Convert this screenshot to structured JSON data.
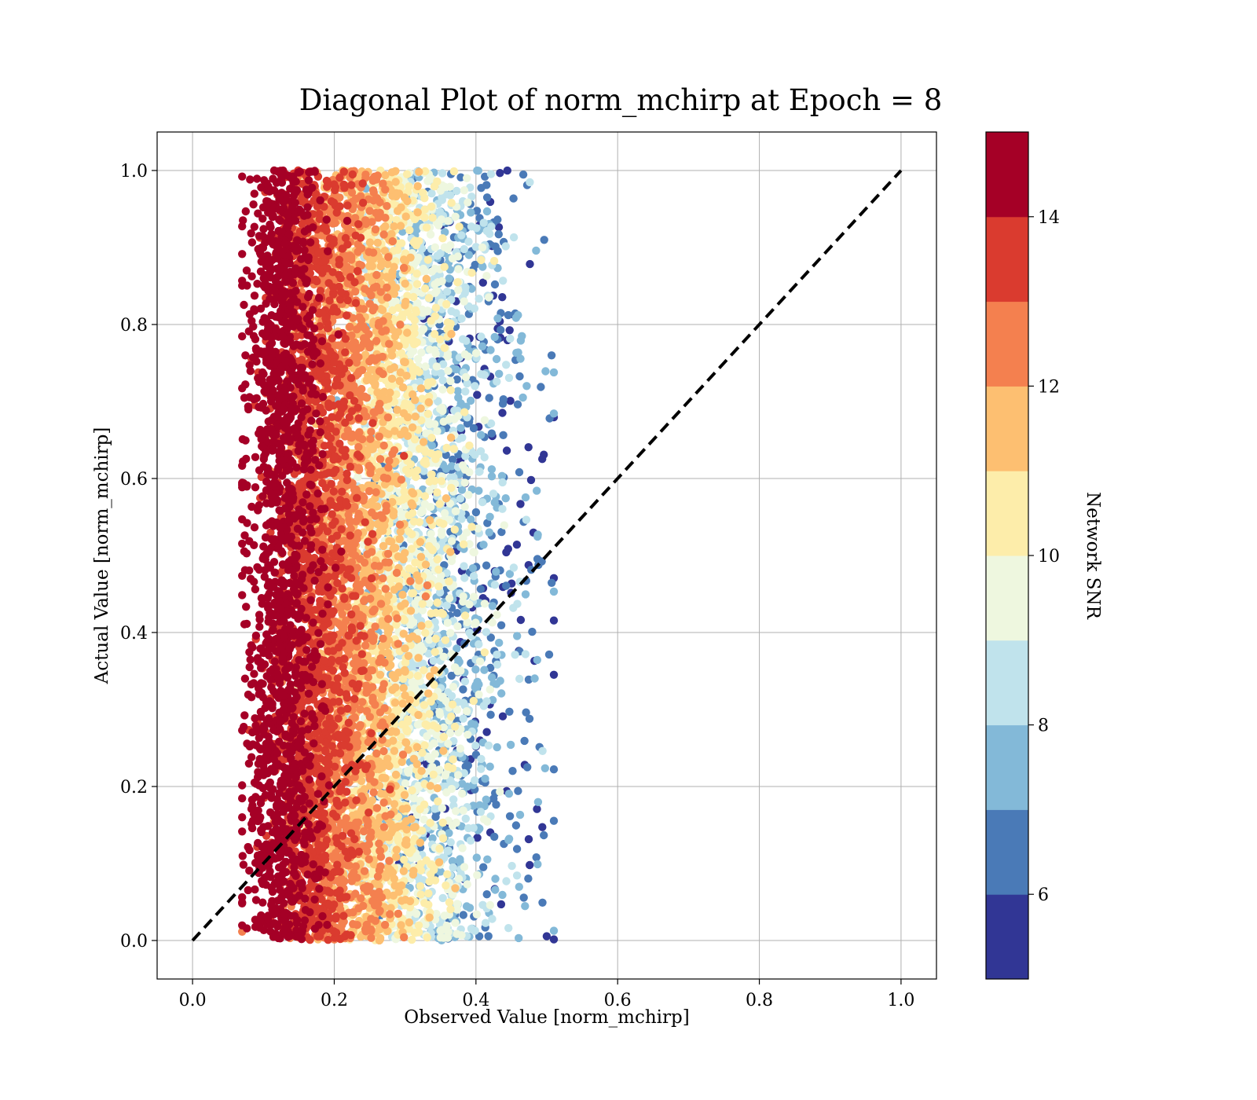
{
  "chart_data": {
    "type": "scatter",
    "title": "Diagonal Plot of norm_mchirp at Epoch = 8",
    "xlabel": "Observed Value [norm_mchirp]",
    "ylabel": "Actual Value [norm_mchirp]",
    "xlim": [
      -0.05,
      1.05
    ],
    "ylim": [
      -0.05,
      1.05
    ],
    "xticks": [
      0.0,
      0.2,
      0.4,
      0.6,
      0.8,
      1.0
    ],
    "yticks": [
      0.0,
      0.2,
      0.4,
      0.6,
      0.8,
      1.0
    ],
    "grid": true,
    "reference_line": {
      "x": [
        0.0,
        1.0
      ],
      "y": [
        0.0,
        1.0
      ],
      "style": "dashed",
      "color": "#000000"
    },
    "colorbar": {
      "label": "Network SNR",
      "range": [
        5,
        15
      ],
      "ticks": [
        6,
        8,
        10,
        12,
        14
      ],
      "colors": [
        "#313695",
        "#4a7ab7",
        "#83b9d8",
        "#c0e3ec",
        "#eef7df",
        "#fdedaa",
        "#fdbf71",
        "#f4804f",
        "#da3b2f",
        "#a50026"
      ]
    },
    "point_distribution": {
      "actual_range": [
        0.0,
        1.0
      ],
      "observed_range_high_snr": [
        0.07,
        0.14
      ],
      "observed_range_low_snr": [
        0.3,
        0.47
      ],
      "observed_max": 0.51
    }
  }
}
